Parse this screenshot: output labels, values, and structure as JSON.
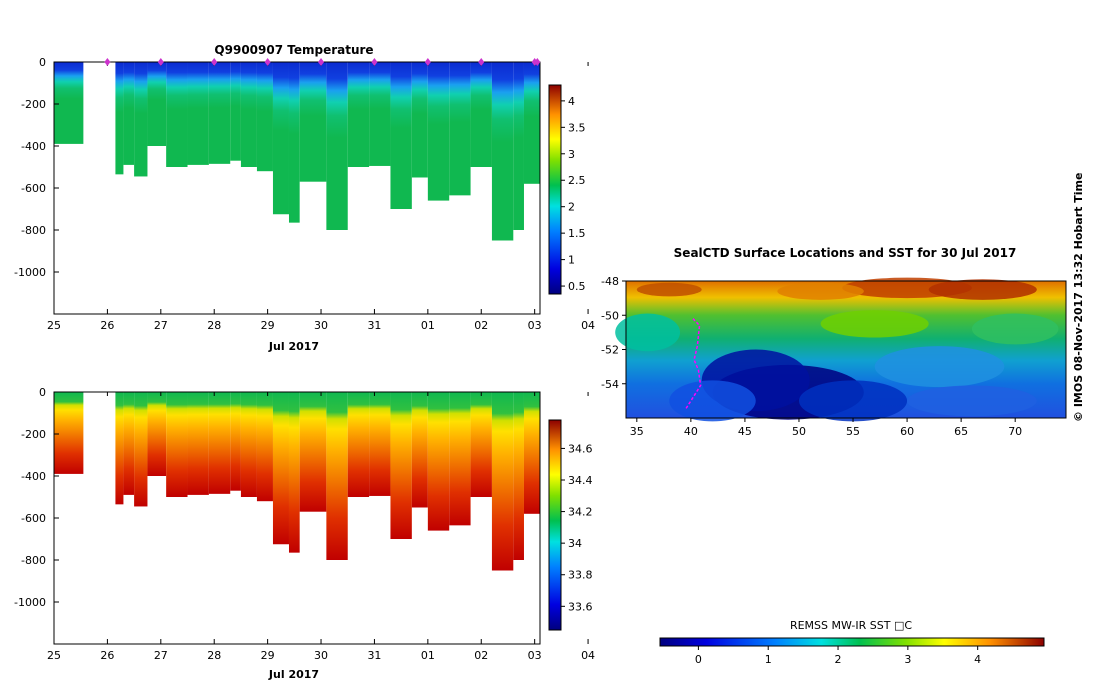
{
  "colors": {
    "cold": "#0a0a8c",
    "mid": "#00b050",
    "warm": "#c81e00",
    "profile_marker": "#cc33cc",
    "track": "#ff00ff",
    "axis": "#000000"
  },
  "side_credit": "© IMOS 08-Nov-2017 13:32 Hobart Time",
  "chart_data": [
    {
      "id": "temperature",
      "type": "heatmap",
      "title": "Q9900907  Temperature",
      "xlabel": "Jul 2017",
      "ylabel": "",
      "xlim": [
        25,
        34.1
      ],
      "ylim": [
        -1200,
        0
      ],
      "x_ticks": [
        "25",
        "26",
        "27",
        "28",
        "29",
        "30",
        "31",
        "01",
        "02",
        "03",
        "04"
      ],
      "y_ticks": [
        "0",
        "-200",
        "-400",
        "-600",
        "-800",
        "-1000"
      ],
      "colorbar": {
        "ticks": [
          "0.5",
          "1",
          "1.5",
          "2",
          "2.5",
          "3",
          "3.5",
          "4"
        ],
        "range": [
          0.35,
          4.3
        ]
      },
      "profile_markers_x": [
        26,
        27,
        28,
        29,
        30,
        31,
        32,
        33,
        34,
        34.05
      ],
      "profiles_x": [
        25,
        25.55,
        26.15,
        26.3,
        26.5,
        26.75,
        27.1,
        27.5,
        27.9,
        28.3,
        28.5,
        28.8,
        29.1,
        29.4,
        29.6,
        30.1,
        30.5,
        30.9,
        31.3,
        31.7,
        32.0,
        32.4,
        32.8,
        33.2,
        33.6,
        33.8,
        34.1
      ],
      "profiles_depth": [
        -390,
        null,
        -535,
        -490,
        -545,
        -400,
        -500,
        -490,
        -485,
        -470,
        -500,
        -520,
        -725,
        -765,
        -570,
        -800,
        -500,
        -495,
        -700,
        -550,
        -660,
        -635,
        -500,
        -850,
        -800,
        -580,
        -625
      ]
    },
    {
      "id": "salinity",
      "type": "heatmap",
      "title": "",
      "xlabel": "Jul 2017",
      "ylabel": "",
      "xlim": [
        25,
        34.1
      ],
      "ylim": [
        -1200,
        0
      ],
      "x_ticks": [
        "25",
        "26",
        "27",
        "28",
        "29",
        "30",
        "31",
        "01",
        "02",
        "03",
        "04"
      ],
      "y_ticks": [
        "0",
        "-200",
        "-400",
        "-600",
        "-800",
        "-1000"
      ],
      "colorbar": {
        "ticks": [
          "33.6",
          "33.8",
          "34",
          "34.2",
          "34.4",
          "34.6"
        ],
        "range": [
          33.45,
          34.78
        ]
      },
      "profiles_x": [
        25,
        25.55,
        26.15,
        26.3,
        26.5,
        26.75,
        27.1,
        27.5,
        27.9,
        28.3,
        28.5,
        28.8,
        29.1,
        29.4,
        29.6,
        30.1,
        30.5,
        30.9,
        31.3,
        31.7,
        32.0,
        32.4,
        32.8,
        33.2,
        33.6,
        33.8,
        34.1
      ],
      "profiles_depth": [
        -390,
        null,
        -535,
        -490,
        -545,
        -400,
        -500,
        -490,
        -485,
        -470,
        -500,
        -520,
        -725,
        -765,
        -570,
        -800,
        -500,
        -495,
        -700,
        -550,
        -660,
        -635,
        -500,
        -850,
        -800,
        -580,
        -625
      ]
    },
    {
      "id": "sst_map",
      "type": "heatmap",
      "title": "SealCTD Surface Locations and SST for 30 Jul 2017",
      "xlabel": "",
      "ylabel": "",
      "xlim": [
        34,
        74.7
      ],
      "ylim": [
        -56,
        -48
      ],
      "x_ticks": [
        "35",
        "40",
        "45",
        "50",
        "55",
        "60",
        "65",
        "70"
      ],
      "y_ticks": [
        "-48",
        "-50",
        "-52",
        "-54"
      ],
      "colorbar": {
        "label": "REMSS MW-IR SST □C",
        "ticks": [
          "0",
          "1",
          "2",
          "3",
          "4"
        ],
        "range": [
          -0.55,
          4.95
        ]
      },
      "track": [
        [
          40.2,
          -50.2
        ],
        [
          40.8,
          -50.6
        ],
        [
          40.6,
          -51.8
        ],
        [
          40.3,
          -52.6
        ],
        [
          40.7,
          -53.2
        ],
        [
          40.9,
          -54.1
        ],
        [
          40.5,
          -54.5
        ],
        [
          39.8,
          -55.2
        ],
        [
          39.5,
          -55.5
        ]
      ]
    }
  ]
}
